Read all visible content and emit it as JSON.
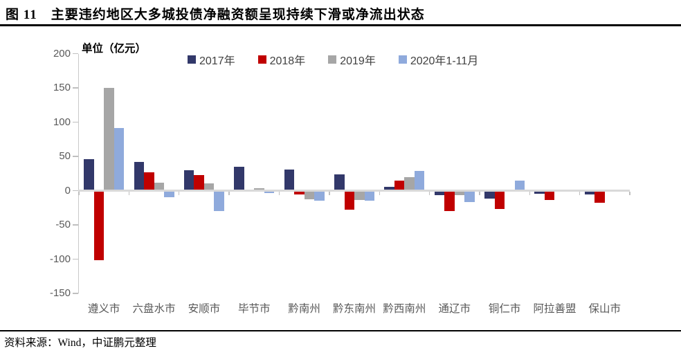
{
  "page": {
    "title": "图 11　主要违约地区大多城投债净融资额呈现持续下滑或净流出状态",
    "source": "资料来源：Wind，中证鹏元整理"
  },
  "chart_data": {
    "type": "bar",
    "title": "主要违约地区大多城投债净融资额呈现持续下滑或净流出状态",
    "figure_label": "图 11",
    "unit_label": "单位（亿元）",
    "ylabel": "亿元",
    "categories": [
      "遵义市",
      "六盘水市",
      "安顺市",
      "毕节市",
      "黔南州",
      "黔东南州",
      "黔西南州",
      "通辽市",
      "铜仁市",
      "阿拉善盟",
      "保山市"
    ],
    "series": [
      {
        "name": "2017年",
        "color": "#32386A",
        "values": [
          44,
          40,
          28,
          33,
          29,
          22,
          4,
          -5,
          -10,
          -3,
          -4
        ]
      },
      {
        "name": "2018年",
        "color": "#C00000",
        "values": [
          -100,
          25,
          21,
          0,
          -4,
          -26,
          13,
          -28,
          -25,
          -12,
          -16
        ]
      },
      {
        "name": "2019年",
        "color": "#A6A6A6",
        "values": [
          148,
          10,
          9,
          2,
          -11,
          -12,
          18,
          -5,
          0,
          0,
          0
        ]
      },
      {
        "name": "2020年1-11月",
        "color": "#8FAADC",
        "values": [
          90,
          -8,
          -28,
          -2,
          -13,
          -13,
          27,
          -15,
          13,
          0,
          0
        ]
      }
    ],
    "ylim": [
      -150,
      200
    ],
    "yticks": [
      200,
      150,
      100,
      50,
      0,
      -50,
      -100,
      -150
    ],
    "grid": false,
    "legend_position": "top-center",
    "colors": {
      "axis_line": "#C9C9C9",
      "zero_line": "#D9D9D9",
      "tick_mark": "#BFBFBF",
      "tick_text": "#595959"
    }
  }
}
